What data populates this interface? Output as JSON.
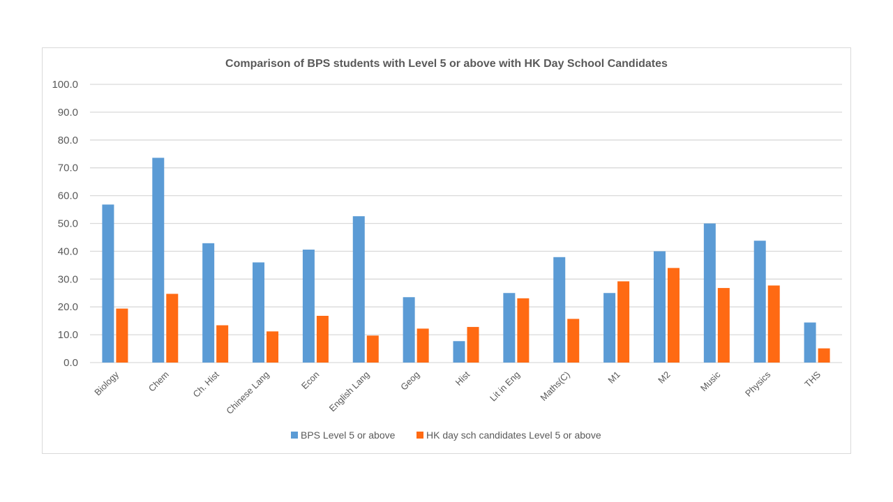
{
  "chart_data": {
    "type": "bar",
    "title": "Comparison of BPS students with Level 5 or above with HK Day School Candidates",
    "categories": [
      "Biology",
      "Chem",
      "Ch. Hist",
      "Chinese Lang",
      "Econ",
      "English Lang",
      "Geog",
      "Hist",
      "Lit in Eng",
      "Maths(C)",
      "M1",
      "M2",
      "Music",
      "Physics",
      "THS"
    ],
    "series": [
      {
        "name": "BPS Level 5 or above",
        "color": "#5b9bd5",
        "values": [
          56.8,
          73.6,
          42.9,
          36.0,
          40.6,
          52.6,
          23.5,
          7.7,
          25.0,
          37.9,
          25.0,
          40.0,
          50.0,
          43.8,
          14.4
        ]
      },
      {
        "name": "HK day sch candidates Level 5 or above",
        "color": "#ff6a13",
        "values": [
          19.4,
          24.7,
          13.4,
          11.2,
          16.8,
          9.7,
          12.2,
          12.8,
          23.1,
          15.7,
          29.2,
          34.0,
          26.8,
          27.7,
          5.1
        ]
      }
    ],
    "yticks": [
      "0.0",
      "10.0",
      "20.0",
      "30.0",
      "40.0",
      "50.0",
      "60.0",
      "70.0",
      "80.0",
      "90.0",
      "100.0"
    ],
    "ylim": [
      0,
      100
    ],
    "xlabel": "",
    "ylabel": "",
    "grid": true,
    "legend_position": "bottom",
    "gridline_color": "#d9d9d9"
  }
}
